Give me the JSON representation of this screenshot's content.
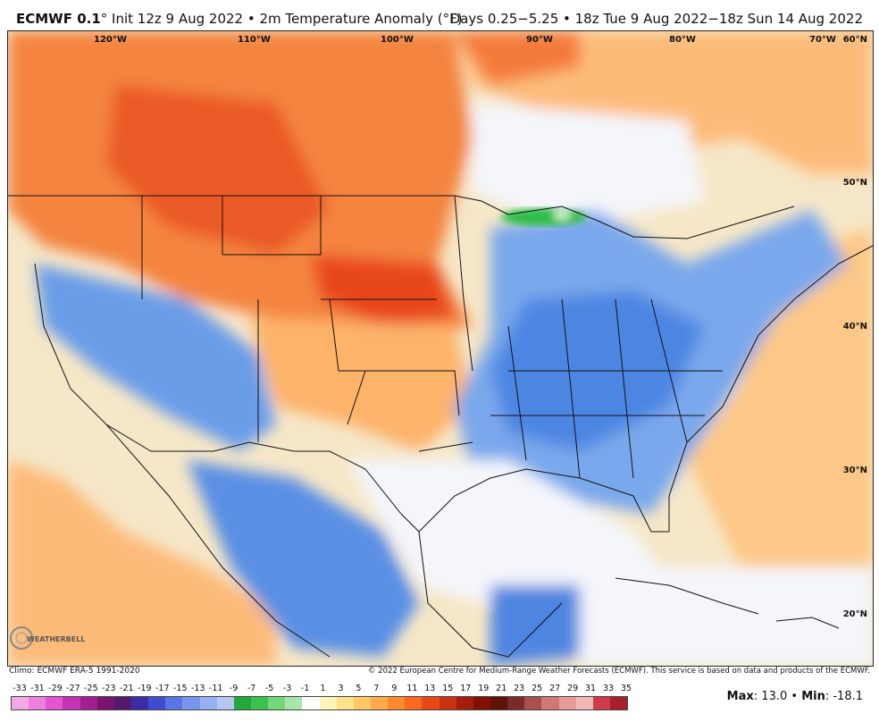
{
  "header": {
    "model": "ECMWF 0.1",
    "init": "° Init 12z 9 Aug 2022 • 2m Temperature Anomaly (°F)",
    "range": "Days 0.25−5.25 • 18z Tue 9 Aug 2022−18z Sun 14 Aug 2022"
  },
  "map": {
    "lon_labels": [
      "120°W",
      "110°W",
      "100°W",
      "90°W",
      "80°W",
      "70°W"
    ],
    "lat_labels": [
      "60°N",
      "50°N",
      "40°N",
      "30°N",
      "20°N"
    ],
    "colors": {
      "warm": "#f2703a",
      "hot": "#e8451f",
      "mild_warm": "#fdb36b",
      "cool": "#5b97e6",
      "cold": "#3b6fd6",
      "neutral": "#f2f4fa",
      "green": "#38c24a",
      "water": "#f4f6fb"
    }
  },
  "footer": {
    "climo": "Climo: ECMWF ERA-5 1991-2020",
    "copyright": "© 2022 European Centre for Medium-Range Weather Forecasts (ECMWF). This service is based on data and products of the ECMWF."
  },
  "colorbar": {
    "ticks": [
      "-33",
      "-31",
      "-29",
      "-27",
      "-25",
      "-23",
      "-21",
      "-19",
      "-17",
      "-15",
      "-13",
      "-11",
      "-9",
      "-7",
      "-5",
      "-3",
      "-1",
      "1",
      "3",
      "5",
      "7",
      "9",
      "11",
      "13",
      "15",
      "17",
      "19",
      "21",
      "23",
      "25",
      "27",
      "29",
      "31",
      "33",
      "35"
    ],
    "swatches": [
      "#f5a8e8",
      "#ee7fde",
      "#e254d0",
      "#c532b6",
      "#a11e93",
      "#7a1470",
      "#54186e",
      "#3d2ba6",
      "#3f4ed0",
      "#5a73e6",
      "#7b95ef",
      "#98b0f2",
      "#b5c6f3",
      "#20a83a",
      "#3bc24e",
      "#73d77c",
      "#a6e6a8",
      "#ffffff",
      "#fff4b8",
      "#ffe28a",
      "#ffc866",
      "#ffab4a",
      "#ff8a2e",
      "#f86a1e",
      "#e64a14",
      "#c8320e",
      "#a41e0a",
      "#801008",
      "#5e1208",
      "#7a2a2a",
      "#a85050",
      "#d07878",
      "#e89a9a",
      "#f2b8b8",
      "#d03a4a",
      "#a81e2e"
    ]
  },
  "stats": {
    "max_label": "Max",
    "max_value": ": 13.0",
    "min_label": "Min",
    "min_value": ": -18.1",
    "sep": " • "
  },
  "logo": {
    "text": "WEATHERBELL"
  }
}
